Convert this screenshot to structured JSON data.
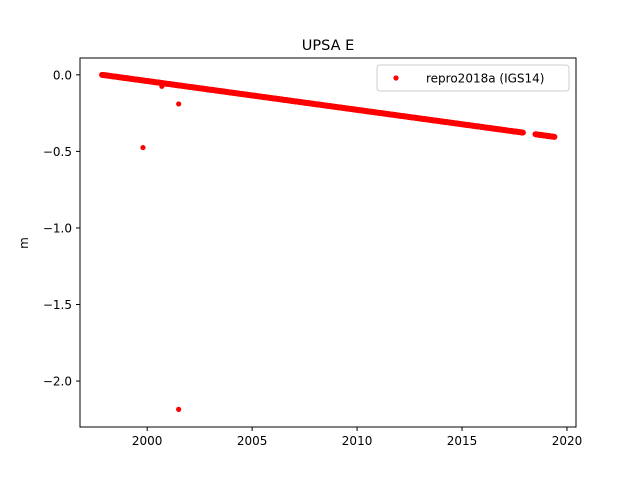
{
  "chart_data": {
    "type": "scatter",
    "title": "UPSA E",
    "xlabel": "",
    "ylabel": "m",
    "xlim": [
      1996.8,
      2020.43
    ],
    "ylim": [
      -2.3,
      0.11
    ],
    "xticks": [
      2000,
      2005,
      2010,
      2015,
      2020
    ],
    "xtick_labels": [
      "2000",
      "2005",
      "2010",
      "2015",
      "2020"
    ],
    "yticks": [
      0.0,
      -0.5,
      -1.0,
      -1.5,
      -2.0
    ],
    "ytick_labels": [
      "0.0",
      "−0.5",
      "−1.0",
      "−1.5",
      "−2.0"
    ],
    "grid": false,
    "legend_position": "top-right",
    "series": [
      {
        "name": "repro2018a (IGS14)",
        "color": "#ff0000",
        "marker": "dot",
        "trend_segments": [
          {
            "x": [
              1997.85,
              2017.2
            ],
            "y": [
              0.0,
              -0.364
            ]
          },
          {
            "x": [
              2017.3,
              2017.9
            ],
            "y": [
              -0.366,
              -0.377
            ]
          },
          {
            "x": [
              2018.5,
              2019.4
            ],
            "y": [
              -0.388,
              -0.405
            ]
          }
        ],
        "outliers": {
          "x": [
            1999.8,
            2000.7,
            2001.5,
            2001.5
          ],
          "y": [
            -0.475,
            -0.075,
            -0.19,
            -2.185
          ]
        }
      }
    ]
  }
}
